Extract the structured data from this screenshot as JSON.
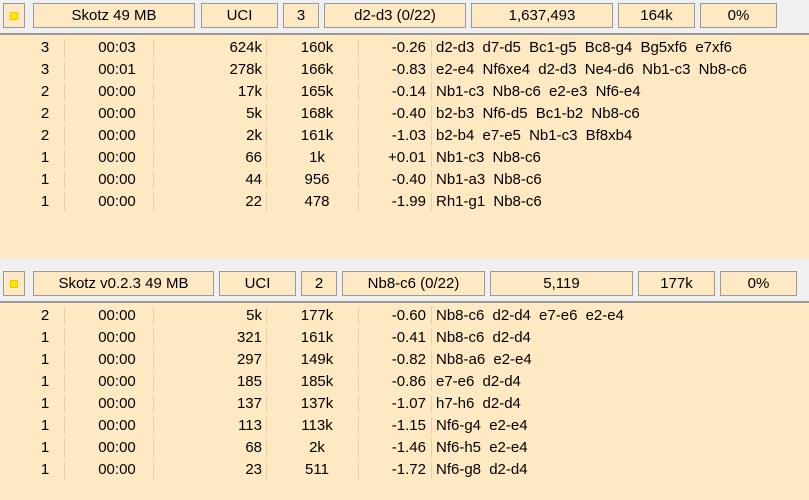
{
  "engines": [
    {
      "name": "Skotz  49 MB",
      "protocol": "UCI",
      "depth": "3",
      "current_move": "d2-d3 (0/22)",
      "nodes": "1,637,493",
      "nps": "164k",
      "tbhits": "0%",
      "lines": [
        {
          "depth": "3",
          "time": "00:03",
          "nodes": "624k",
          "nps": "160k",
          "score": "-0.26",
          "pv": "d2-d3  d7-d5  Bc1-g5  Bc8-g4  Bg5xf6  e7xf6"
        },
        {
          "depth": "3",
          "time": "00:01",
          "nodes": "278k",
          "nps": "166k",
          "score": "-0.83",
          "pv": "e2-e4  Nf6xe4  d2-d3  Ne4-d6  Nb1-c3  Nb8-c6"
        },
        {
          "depth": "2",
          "time": "00:00",
          "nodes": "17k",
          "nps": "165k",
          "score": "-0.14",
          "pv": "Nb1-c3  Nb8-c6  e2-e3  Nf6-e4"
        },
        {
          "depth": "2",
          "time": "00:00",
          "nodes": "5k",
          "nps": "168k",
          "score": "-0.40",
          "pv": "b2-b3  Nf6-d5  Bc1-b2  Nb8-c6"
        },
        {
          "depth": "2",
          "time": "00:00",
          "nodes": "2k",
          "nps": "161k",
          "score": "-1.03",
          "pv": "b2-b4  e7-e5  Nb1-c3  Bf8xb4"
        },
        {
          "depth": "1",
          "time": "00:00",
          "nodes": "66",
          "nps": "1k",
          "score": "+0.01",
          "pv": "Nb1-c3  Nb8-c6"
        },
        {
          "depth": "1",
          "time": "00:00",
          "nodes": "44",
          "nps": "956",
          "score": "-0.40",
          "pv": "Nb1-a3  Nb8-c6"
        },
        {
          "depth": "1",
          "time": "00:00",
          "nodes": "22",
          "nps": "478",
          "score": "-1.99",
          "pv": "Rh1-g1  Nb8-c6"
        }
      ]
    },
    {
      "name": "Skotz v0.2.3  49 MB",
      "protocol": "UCI",
      "depth": "2",
      "current_move": "Nb8-c6 (0/22)",
      "nodes": "5,119",
      "nps": "177k",
      "tbhits": "0%",
      "lines": [
        {
          "depth": "2",
          "time": "00:00",
          "nodes": "5k",
          "nps": "177k",
          "score": "-0.60",
          "pv": "Nb8-c6  d2-d4  e7-e6  e2-e4"
        },
        {
          "depth": "1",
          "time": "00:00",
          "nodes": "321",
          "nps": "161k",
          "score": "-0.41",
          "pv": "Nb8-c6  d2-d4"
        },
        {
          "depth": "1",
          "time": "00:00",
          "nodes": "297",
          "nps": "149k",
          "score": "-0.82",
          "pv": "Nb8-a6  e2-e4"
        },
        {
          "depth": "1",
          "time": "00:00",
          "nodes": "185",
          "nps": "185k",
          "score": "-0.86",
          "pv": "e7-e6  d2-d4"
        },
        {
          "depth": "1",
          "time": "00:00",
          "nodes": "137",
          "nps": "137k",
          "score": "-1.07",
          "pv": "h7-h6  d2-d4"
        },
        {
          "depth": "1",
          "time": "00:00",
          "nodes": "113",
          "nps": "113k",
          "score": "-1.15",
          "pv": "Nf6-g4  e2-e4"
        },
        {
          "depth": "1",
          "time": "00:00",
          "nodes": "68",
          "nps": "2k",
          "score": "-1.46",
          "pv": "Nf6-h5  e2-e4"
        },
        {
          "depth": "1",
          "time": "00:00",
          "nodes": "23",
          "nps": "511",
          "score": "-1.72",
          "pv": "Nf6-g8  d2-d4"
        }
      ]
    }
  ],
  "colors": {
    "panel_bg": "#ffe9c2",
    "led": "#ffe600",
    "border": "#9a9a9a"
  },
  "icons": {
    "status": "engine-status-led-icon"
  }
}
